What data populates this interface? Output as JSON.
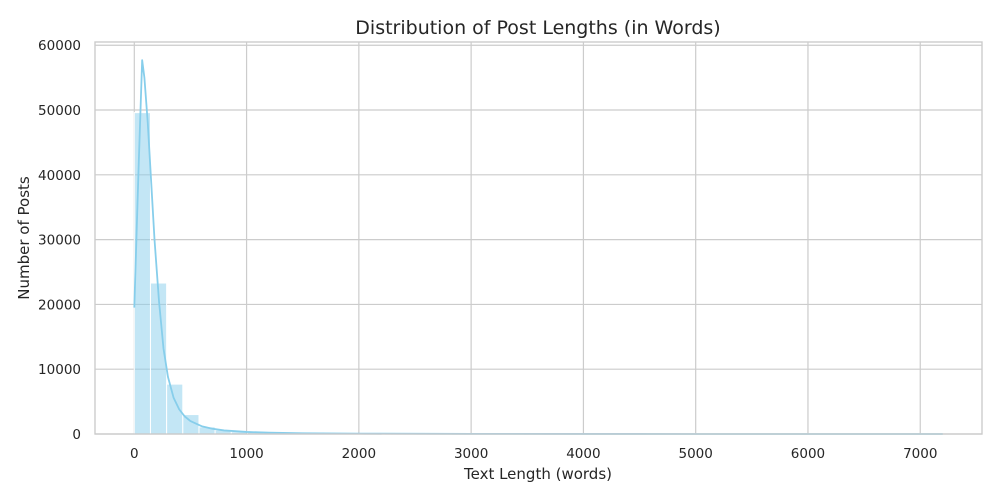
{
  "chart_data": {
    "type": "bar",
    "title": "Distribution of Post Lengths (in Words)",
    "xlabel": "Text Length (words)",
    "ylabel": "Number of Posts",
    "xlim": [
      -350,
      7550
    ],
    "ylim": [
      0,
      60500
    ],
    "xticks": [
      0,
      1000,
      2000,
      3000,
      4000,
      5000,
      6000,
      7000
    ],
    "yticks": [
      0,
      10000,
      20000,
      30000,
      40000,
      50000,
      60000
    ],
    "bin_width": 144,
    "bins": [
      {
        "x0": 0,
        "x1": 144,
        "count": 49600
      },
      {
        "x0": 144,
        "x1": 288,
        "count": 23300
      },
      {
        "x0": 288,
        "x1": 432,
        "count": 7700
      },
      {
        "x0": 432,
        "x1": 576,
        "count": 3000
      },
      {
        "x0": 576,
        "x1": 720,
        "count": 1100
      },
      {
        "x0": 720,
        "x1": 864,
        "count": 600
      },
      {
        "x0": 864,
        "x1": 1008,
        "count": 350
      },
      {
        "x0": 1008,
        "x1": 1152,
        "count": 250
      },
      {
        "x0": 1152,
        "x1": 1296,
        "count": 180
      },
      {
        "x0": 1296,
        "x1": 1440,
        "count": 130
      },
      {
        "x0": 1440,
        "x1": 1584,
        "count": 100
      },
      {
        "x0": 1584,
        "x1": 1728,
        "count": 80
      },
      {
        "x0": 1728,
        "x1": 1872,
        "count": 60
      },
      {
        "x0": 1872,
        "x1": 2016,
        "count": 45
      },
      {
        "x0": 2016,
        "x1": 2160,
        "count": 35
      },
      {
        "x0": 2160,
        "x1": 2304,
        "count": 28
      }
    ],
    "kde": {
      "x": [
        0,
        40,
        70,
        90,
        120,
        150,
        180,
        220,
        260,
        300,
        350,
        400,
        450,
        500,
        600,
        700,
        800,
        1000,
        1200,
        1500,
        2000,
        3000,
        4000,
        5000,
        6000,
        7200
      ],
      "y": [
        19500,
        42000,
        57700,
        55000,
        48000,
        39000,
        30000,
        20500,
        13200,
        8800,
        5600,
        3800,
        2700,
        2000,
        1200,
        800,
        550,
        320,
        200,
        120,
        60,
        20,
        10,
        5,
        3,
        2
      ]
    },
    "bar_color": "#87ceeb",
    "bar_opacity": 0.5,
    "line_color": "#87ceeb",
    "grid": true
  }
}
